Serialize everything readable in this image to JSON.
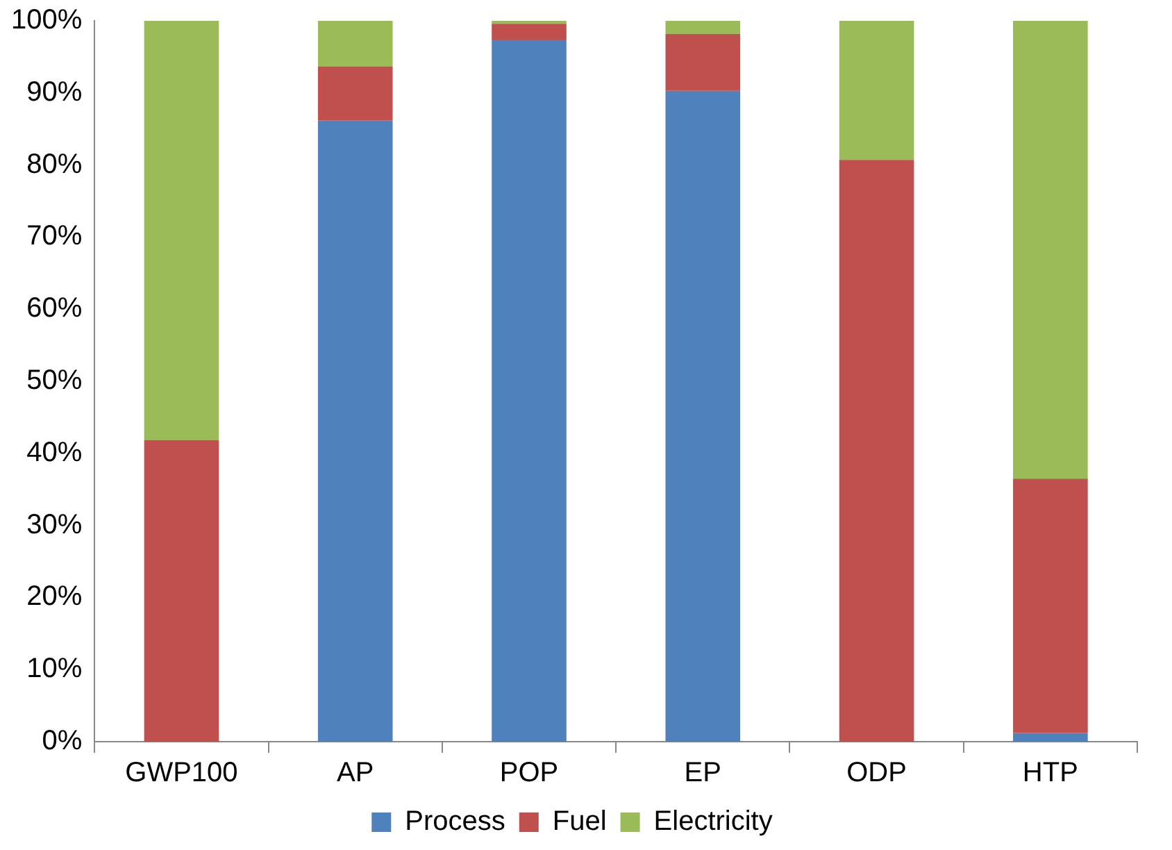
{
  "chart_data": {
    "type": "bar",
    "stacked": true,
    "categories": [
      "GWP100",
      "AP",
      "POP",
      "EP",
      "ODP",
      "HTP"
    ],
    "series": [
      {
        "name": "Process",
        "color": "#4f81bd",
        "values": [
          0,
          86.2,
          97.4,
          90.3,
          0,
          1.2
        ]
      },
      {
        "name": "Fuel",
        "color": "#c0504d",
        "values": [
          41.8,
          7.5,
          2.2,
          7.9,
          80.7,
          35.3
        ]
      },
      {
        "name": "Electricity",
        "color": "#9bbb59",
        "values": [
          58.2,
          6.3,
          0.4,
          1.8,
          19.3,
          63.5
        ]
      }
    ],
    "ylim": [
      0,
      100
    ],
    "yticks": [
      {
        "value": 0,
        "label": "0%"
      },
      {
        "value": 10,
        "label": "10%"
      },
      {
        "value": 20,
        "label": "20%"
      },
      {
        "value": 30,
        "label": "30%"
      },
      {
        "value": 40,
        "label": "40%"
      },
      {
        "value": 50,
        "label": "50%"
      },
      {
        "value": 60,
        "label": "60%"
      },
      {
        "value": 70,
        "label": "70%"
      },
      {
        "value": 80,
        "label": "80%"
      },
      {
        "value": 90,
        "label": "90%"
      },
      {
        "value": 100,
        "label": "100%"
      }
    ],
    "grid": false,
    "legend": "bottom"
  }
}
